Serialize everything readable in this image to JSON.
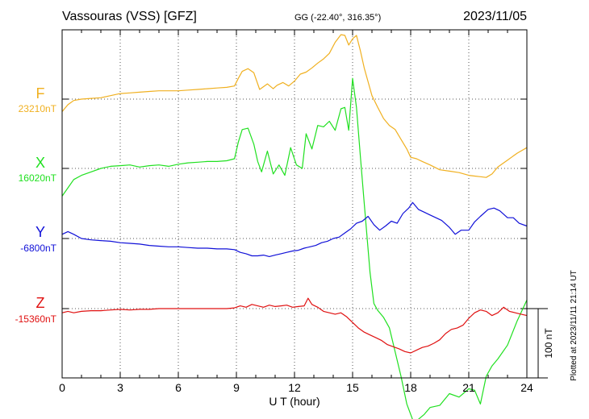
{
  "header": {
    "station": "Vassouras (VSS)  [GFZ]",
    "coords": "GG (-22.40°, 316.35°)",
    "date": "2023/11/05"
  },
  "plotted": "Plotted at 2023/11/11 21:14 UT",
  "scale_bar": {
    "label": "100 nT",
    "nT": 100
  },
  "chart_data": {
    "type": "line",
    "title": "",
    "xlabel": "U T (hour)",
    "xlim": [
      0,
      24
    ],
    "xticks": [
      0,
      3,
      6,
      9,
      12,
      15,
      18,
      21,
      24
    ],
    "grid": true,
    "series": [
      {
        "name": "F",
        "baseline_label": "23210nT",
        "color": "#f0b020",
        "x": [
          0,
          0.3,
          0.6,
          1,
          1.5,
          2,
          2.5,
          3,
          3.5,
          4,
          4.5,
          5,
          5.5,
          6,
          6.5,
          7,
          7.5,
          8,
          8.5,
          8.9,
          9.1,
          9.3,
          9.6,
          9.9,
          10.2,
          10.6,
          10.9,
          11.1,
          11.4,
          11.7,
          12,
          12.3,
          12.6,
          12.9,
          13.2,
          13.5,
          13.8,
          14.1,
          14.4,
          14.6,
          14.8,
          15,
          15.2,
          15.4,
          15.6,
          15.8,
          16,
          16.3,
          16.6,
          16.9,
          17.2,
          17.5,
          17.8,
          18,
          18.3,
          18.6,
          19,
          19.5,
          20,
          20.5,
          21,
          21.3,
          21.6,
          21.9,
          22.2,
          22.5,
          23,
          23.5,
          24
        ],
        "values": [
          -18,
          -8,
          -2,
          0,
          1,
          2,
          5,
          8,
          9,
          10,
          11,
          12,
          12,
          12,
          13,
          14,
          15,
          16,
          17,
          19,
          30,
          40,
          44,
          38,
          14,
          22,
          15,
          20,
          24,
          19,
          26,
          36,
          39,
          45,
          52,
          58,
          66,
          82,
          93,
          92,
          78,
          87,
          92,
          70,
          45,
          25,
          5,
          -12,
          -28,
          -38,
          -44,
          -58,
          -72,
          -84,
          -86,
          -90,
          -95,
          -102,
          -104,
          -106,
          -110,
          -111,
          -112,
          -113,
          -108,
          -98,
          -88,
          -78,
          -70
        ]
      },
      {
        "name": "X",
        "baseline_label": "16020nT",
        "color": "#20e020",
        "x": [
          0,
          0.3,
          0.6,
          1,
          1.5,
          2,
          2.5,
          3,
          3.5,
          4,
          4.5,
          5,
          5.5,
          6,
          6.5,
          7,
          7.5,
          8,
          8.5,
          8.9,
          9.1,
          9.3,
          9.6,
          9.9,
          10.1,
          10.3,
          10.6,
          10.9,
          11.2,
          11.5,
          11.8,
          12.1,
          12.4,
          12.6,
          12.9,
          13.2,
          13.5,
          13.8,
          14.1,
          14.4,
          14.6,
          14.8,
          15,
          15.2,
          15.4,
          15.6,
          15.9,
          16.1,
          16.3,
          16.6,
          16.9,
          17.2,
          17.5,
          17.8,
          18,
          18.2,
          18.4,
          18.7,
          19,
          19.5,
          20,
          20.5,
          21,
          21.3,
          21.6,
          21.9,
          22.2,
          22.5,
          23,
          23.5,
          24
        ],
        "values": [
          -40,
          -28,
          -16,
          -10,
          -5,
          0,
          3,
          4,
          5,
          2,
          4,
          5,
          3,
          6,
          8,
          9,
          10,
          10,
          11,
          14,
          38,
          56,
          58,
          35,
          10,
          -5,
          25,
          -8,
          5,
          -10,
          30,
          5,
          0,
          50,
          28,
          62,
          60,
          68,
          55,
          86,
          88,
          55,
          130,
          88,
          18,
          -50,
          -150,
          -195,
          -205,
          -215,
          -230,
          -265,
          -300,
          -340,
          -355,
          -370,
          -362,
          -355,
          -345,
          -342,
          -325,
          -330,
          -318,
          -320,
          -340,
          -300,
          -285,
          -275,
          -255,
          -220,
          -190
        ]
      },
      {
        "name": "Y",
        "baseline_label": "-6800nT",
        "color": "#1010d8",
        "x": [
          0,
          0.3,
          0.6,
          1,
          1.5,
          2,
          2.5,
          3,
          3.5,
          4,
          4.5,
          5,
          5.5,
          6,
          6.5,
          7,
          7.5,
          8,
          8.5,
          8.9,
          9.2,
          9.5,
          9.8,
          10.1,
          10.4,
          10.7,
          11,
          11.3,
          11.6,
          11.9,
          12.2,
          12.5,
          12.8,
          13.1,
          13.4,
          13.7,
          14,
          14.3,
          14.6,
          14.9,
          15.2,
          15.5,
          15.8,
          16.1,
          16.4,
          16.7,
          17,
          17.3,
          17.6,
          17.9,
          18.1,
          18.4,
          18.7,
          19,
          19.3,
          19.6,
          20,
          20.3,
          20.6,
          21,
          21.3,
          21.6,
          22,
          22.3,
          22.6,
          23,
          23.3,
          23.6,
          24
        ],
        "values": [
          6,
          10,
          6,
          0,
          -2,
          -3,
          -4,
          -6,
          -7,
          -8,
          -10,
          -11,
          -12,
          -12,
          -13,
          -14,
          -14,
          -15,
          -15,
          -16,
          -20,
          -22,
          -25,
          -25,
          -24,
          -26,
          -24,
          -22,
          -20,
          -18,
          -17,
          -14,
          -12,
          -10,
          -6,
          -4,
          0,
          2,
          8,
          14,
          22,
          25,
          32,
          20,
          12,
          18,
          25,
          22,
          36,
          44,
          52,
          42,
          38,
          34,
          30,
          26,
          16,
          6,
          12,
          12,
          24,
          32,
          42,
          44,
          40,
          30,
          30,
          22,
          18
        ]
      },
      {
        "name": "Z",
        "baseline_label": "-15360nT",
        "color": "#e01010",
        "x": [
          0,
          0.3,
          0.6,
          1,
          1.5,
          2,
          2.5,
          3,
          3.5,
          4,
          4.5,
          5,
          5.5,
          6,
          6.5,
          7,
          7.5,
          8,
          8.5,
          8.9,
          9.2,
          9.5,
          9.8,
          10.1,
          10.4,
          10.7,
          11,
          11.3,
          11.6,
          11.9,
          12.2,
          12.5,
          12.7,
          12.9,
          13.2,
          13.5,
          13.8,
          14.1,
          14.4,
          14.7,
          15,
          15.3,
          15.6,
          15.9,
          16.2,
          16.5,
          16.8,
          17.1,
          17.4,
          17.7,
          18,
          18.3,
          18.6,
          18.9,
          19.2,
          19.5,
          19.8,
          20.1,
          20.4,
          20.7,
          21,
          21.3,
          21.6,
          21.9,
          22.2,
          22.5,
          22.8,
          23.1,
          23.4,
          23.7,
          24
        ],
        "values": [
          -6,
          -4,
          -6,
          -4,
          -3,
          -3,
          -2,
          -1,
          -2,
          -1,
          -1,
          0,
          0,
          0,
          0,
          0,
          0,
          0,
          0,
          1,
          4,
          2,
          6,
          4,
          2,
          5,
          3,
          4,
          5,
          2,
          3,
          4,
          15,
          6,
          2,
          -4,
          -6,
          -8,
          -6,
          -12,
          -20,
          -28,
          -34,
          -38,
          -42,
          -46,
          -52,
          -55,
          -58,
          -62,
          -64,
          -60,
          -56,
          -54,
          -50,
          -45,
          -36,
          -30,
          -28,
          -24,
          -14,
          -6,
          -2,
          -4,
          -10,
          -6,
          2,
          -4,
          -6,
          -8,
          -10
        ]
      }
    ]
  }
}
